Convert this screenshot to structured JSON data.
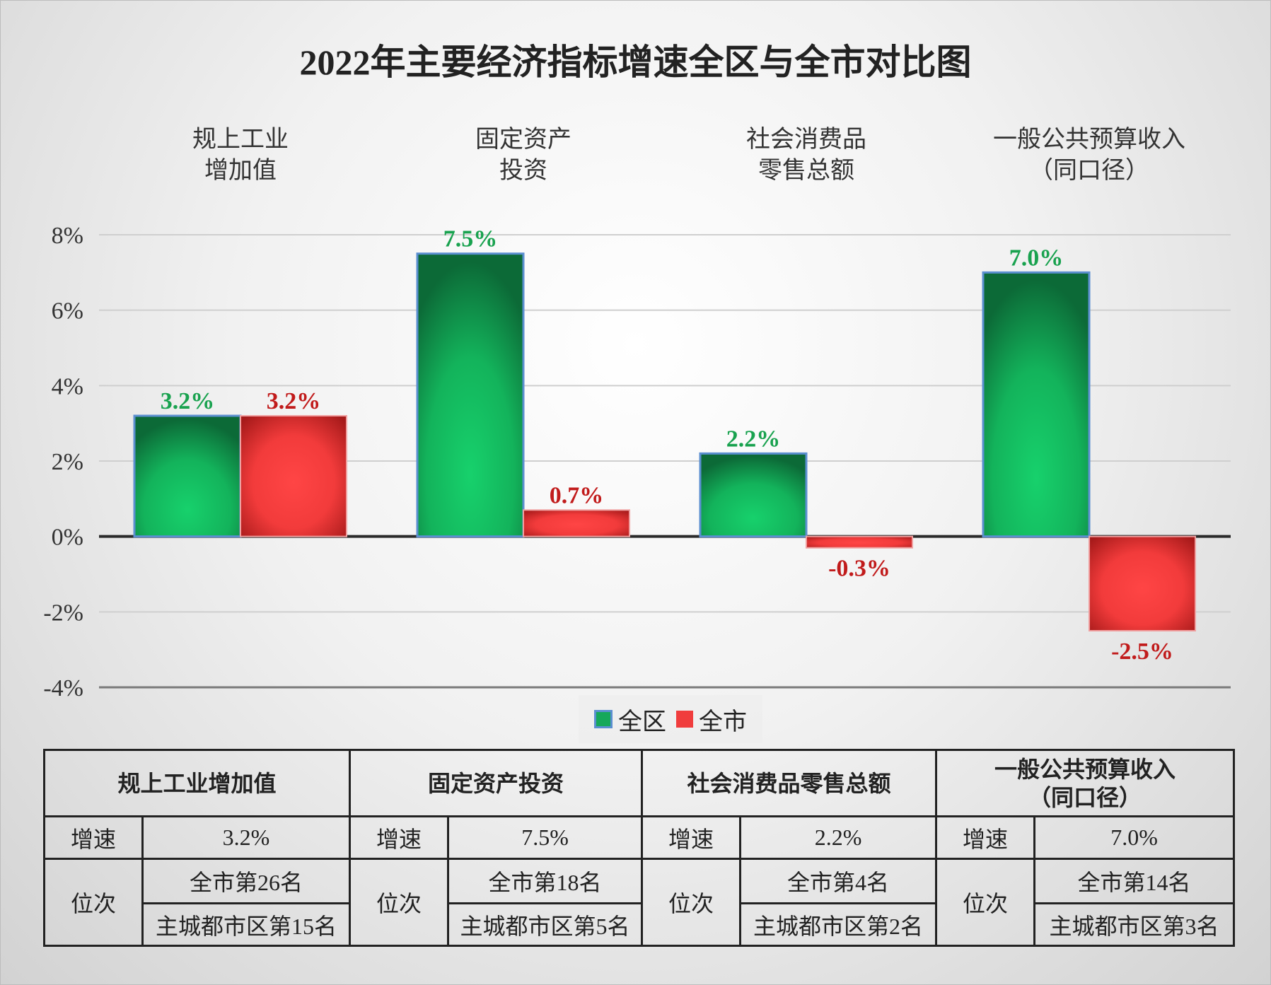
{
  "chart_data": {
    "type": "bar",
    "title": "2022年主要经济指标增速全区与全市对比图",
    "categories": [
      [
        "规上工业",
        "增加值"
      ],
      [
        "固定资产",
        "投资"
      ],
      [
        "社会消费品",
        "零售总额"
      ],
      [
        "一般公共预算收入",
        "（同口径）"
      ]
    ],
    "series": [
      {
        "name": "全区",
        "color": "#16a85a",
        "label_color": "#19a24f",
        "values": [
          3.2,
          7.5,
          2.2,
          7.0
        ],
        "labels": [
          "3.2%",
          "7.5%",
          "2.2%",
          "7.0%"
        ]
      },
      {
        "name": "全市",
        "color": "#f03d3d",
        "label_color": "#c11b1b",
        "values": [
          3.2,
          0.7,
          -0.3,
          -2.5
        ],
        "labels": [
          "3.2%",
          "0.7%",
          "-0.3%",
          "-2.5%"
        ]
      }
    ],
    "ylim": [
      -4,
      8
    ],
    "yticks": [
      8,
      6,
      4,
      2,
      0,
      -2,
      -4
    ],
    "ytick_labels": [
      "8%",
      "6%",
      "4%",
      "2%",
      "0%",
      "-2%",
      "-4%"
    ],
    "grid": true,
    "legend_position": "bottom"
  },
  "table": {
    "headers": [
      "规上工业增加值",
      "固定资产投资",
      "社会消费品零售总额",
      "一般公共预算收入",
      "（同口径）"
    ],
    "speed_label": "增速",
    "rank_label": "位次",
    "speeds": [
      "3.2%",
      "7.5%",
      "2.2%",
      "7.0%"
    ],
    "city_ranks": [
      "全市第26名",
      "全市第18名",
      "全市第4名",
      "全市第14名"
    ],
    "core_ranks": [
      "主城都市区第15名",
      "主城都市区第5名",
      "主城都市区第2名",
      "主城都市区第3名"
    ]
  }
}
